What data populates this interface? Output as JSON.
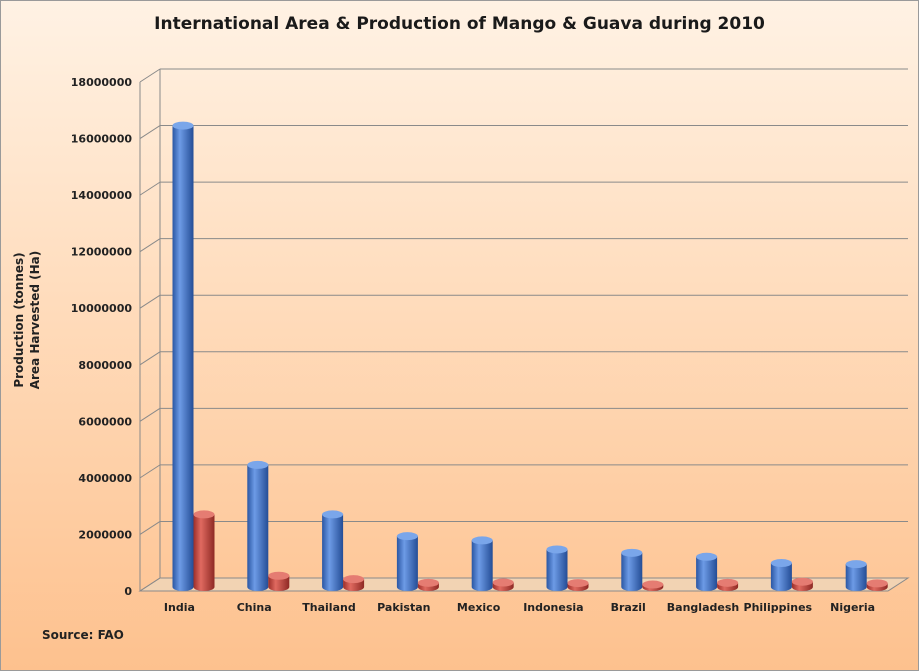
{
  "chart_data": {
    "type": "bar",
    "title": "International Area & Production of Mango & Guava during 2010",
    "ylabel_line1": "Production (tonnes)",
    "ylabel_line2": "Area Harvested (Ha)",
    "xlabel": "",
    "source": "Source: FAO",
    "categories": [
      "India",
      "China",
      "Thailand",
      "Pakistan",
      "Mexico",
      "Indonesia",
      "Brazil",
      "Bangladesh",
      "Philippines",
      "Nigeria"
    ],
    "series": [
      {
        "values": [
          16300000,
          4300000,
          2550000,
          1780000,
          1630000,
          1310000,
          1190000,
          1050000,
          830000,
          790000
        ],
        "color": "#3b6fc7"
      },
      {
        "values": [
          2550000,
          380000,
          260000,
          130000,
          140000,
          120000,
          70000,
          130000,
          170000,
          110000
        ],
        "color": "#c0403a"
      }
    ],
    "ylim": [
      0,
      18000000
    ],
    "yticks": [
      0,
      2000000,
      4000000,
      6000000,
      8000000,
      10000000,
      12000000,
      14000000,
      16000000,
      18000000
    ],
    "ytick_labels": [
      "0",
      "2000000",
      "4000000",
      "6000000",
      "8000000",
      "10000000",
      "12000000",
      "14000000",
      "16000000",
      "18000000"
    ],
    "grid": true,
    "legend": "none"
  }
}
